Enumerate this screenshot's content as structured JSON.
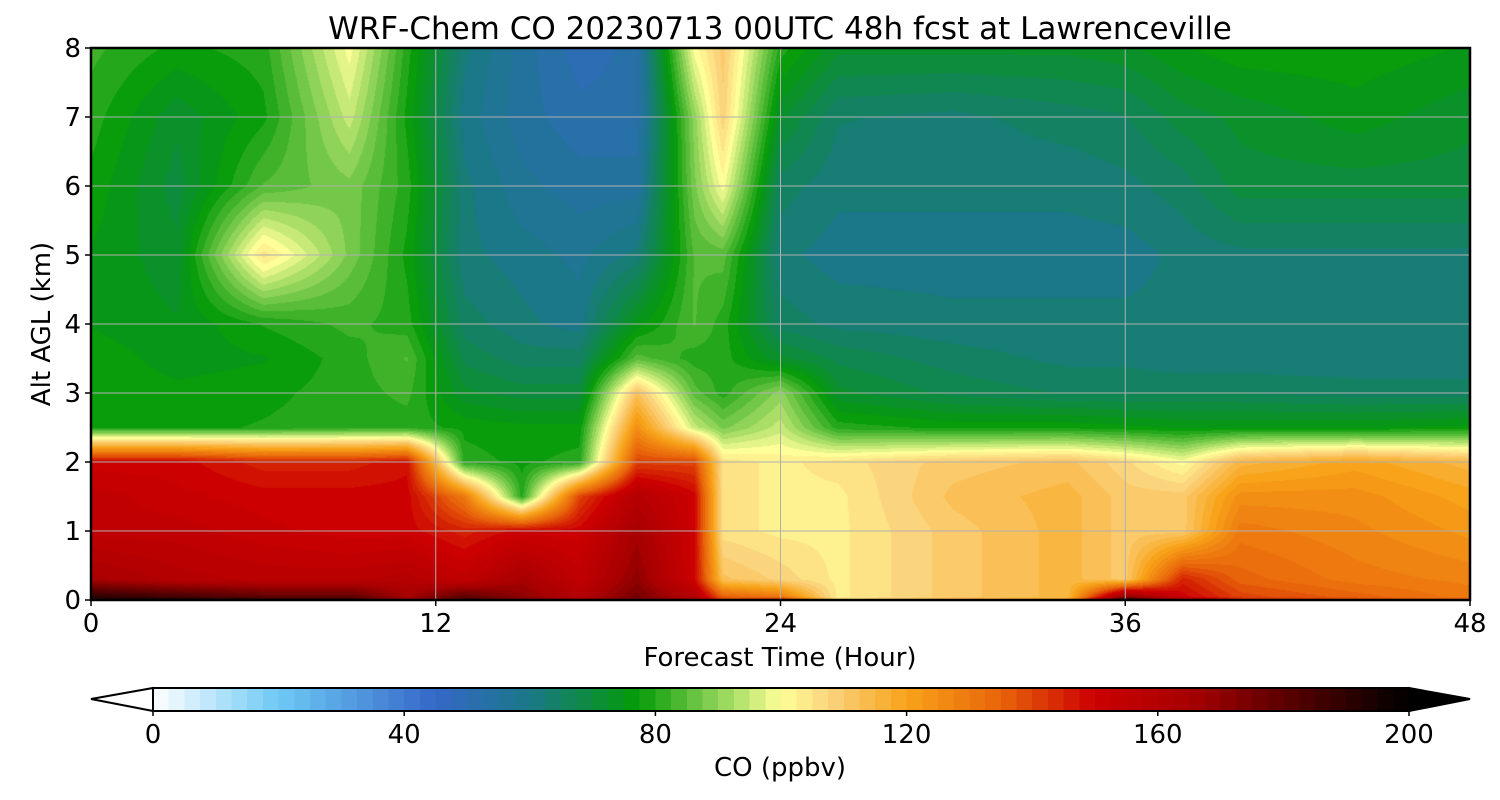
{
  "chart_data": {
    "type": "heatmap",
    "title": "WRF-Chem CO  20230713 00UTC 48h fcst at Lawrenceville",
    "xlabel": "Forecast Time (Hour)",
    "ylabel": "Alt AGL (km)",
    "xlim": [
      0,
      48
    ],
    "ylim": [
      0,
      8
    ],
    "x_ticks": [
      0,
      12,
      24,
      36,
      48
    ],
    "y_ticks": [
      0,
      1,
      2,
      3,
      4,
      5,
      6,
      7,
      8
    ],
    "grid": true,
    "colorbar": {
      "label": "CO  (ppbv)",
      "ticks": [
        0,
        40,
        80,
        120,
        160,
        200
      ],
      "range": [
        0,
        200
      ],
      "extend": "both",
      "colormap": [
        {
          "v": 0,
          "c": "#ffffff"
        },
        {
          "v": 20,
          "c": "#6ec9f5"
        },
        {
          "v": 45,
          "c": "#3567c8"
        },
        {
          "v": 60,
          "c": "#1a7888"
        },
        {
          "v": 77,
          "c": "#049a08"
        },
        {
          "v": 92,
          "c": "#a4dc64"
        },
        {
          "v": 100,
          "c": "#ffff99"
        },
        {
          "v": 108,
          "c": "#fbd27b"
        },
        {
          "v": 120,
          "c": "#f8a31a"
        },
        {
          "v": 135,
          "c": "#e8640a"
        },
        {
          "v": 150,
          "c": "#cc0000"
        },
        {
          "v": 165,
          "c": "#a80000"
        },
        {
          "v": 180,
          "c": "#5c0000"
        },
        {
          "v": 200,
          "c": "#000000"
        }
      ]
    },
    "x_hours": [
      0,
      3,
      6,
      9,
      11,
      13,
      15,
      17,
      19,
      21,
      22,
      24,
      26,
      30,
      34,
      36,
      38,
      40,
      44,
      48
    ],
    "alt_km": [
      0,
      0.05,
      0.3,
      1,
      1.5,
      2,
      2.5,
      3,
      3.5,
      4,
      5,
      6,
      7,
      8
    ],
    "values_ppbv": [
      [
        195,
        195,
        190,
        190,
        170,
        185,
        175,
        165,
        175,
        165,
        140,
        150,
        105,
        115,
        120,
        195,
        165,
        145,
        140,
        135
      ],
      [
        190,
        185,
        180,
        180,
        165,
        180,
        170,
        160,
        175,
        160,
        135,
        130,
        103,
        110,
        115,
        170,
        150,
        140,
        135,
        130
      ],
      [
        165,
        160,
        158,
        158,
        160,
        155,
        165,
        155,
        170,
        150,
        112,
        108,
        103,
        110,
        115,
        110,
        145,
        135,
        130,
        128
      ],
      [
        155,
        155,
        152,
        150,
        150,
        145,
        150,
        150,
        165,
        150,
        105,
        103,
        103,
        110,
        115,
        110,
        110,
        130,
        127,
        123
      ],
      [
        155,
        152,
        150,
        150,
        150,
        130,
        80,
        140,
        160,
        150,
        105,
        103,
        103,
        112,
        115,
        110,
        110,
        125,
        125,
        120
      ],
      [
        150,
        150,
        145,
        145,
        148,
        80,
        78,
        80,
        140,
        140,
        105,
        103,
        105,
        110,
        112,
        107,
        100,
        115,
        120,
        115
      ],
      [
        78,
        78,
        79,
        80,
        80,
        78,
        77,
        77,
        125,
        95,
        88,
        95,
        80,
        78,
        78,
        77,
        76,
        76,
        76,
        77
      ],
      [
        78,
        77,
        78,
        80,
        82,
        72,
        70,
        70,
        112,
        85,
        80,
        90,
        72,
        68,
        66,
        66,
        66,
        66,
        65,
        65
      ],
      [
        78,
        75,
        76,
        80,
        84,
        68,
        65,
        65,
        85,
        80,
        80,
        72,
        68,
        65,
        63,
        63,
        62,
        62,
        62,
        62
      ],
      [
        76,
        74,
        79,
        82,
        80,
        65,
        62,
        60,
        75,
        84,
        80,
        65,
        63,
        62,
        62,
        62,
        62,
        62,
        62,
        62
      ],
      [
        76,
        72,
        105,
        88,
        78,
        62,
        60,
        58,
        62,
        84,
        85,
        62,
        60,
        60,
        60,
        60,
        62,
        63,
        63,
        63
      ],
      [
        78,
        70,
        84,
        88,
        80,
        62,
        57,
        55,
        55,
        88,
        100,
        65,
        62,
        62,
        62,
        63,
        65,
        70,
        70,
        70
      ],
      [
        80,
        72,
        78,
        95,
        78,
        60,
        55,
        52,
        52,
        90,
        108,
        72,
        64,
        63,
        65,
        66,
        70,
        72,
        75,
        72
      ],
      [
        82,
        78,
        80,
        100,
        80,
        62,
        55,
        50,
        52,
        100,
        110,
        80,
        72,
        72,
        72,
        73,
        76,
        78,
        78,
        76
      ]
    ]
  }
}
